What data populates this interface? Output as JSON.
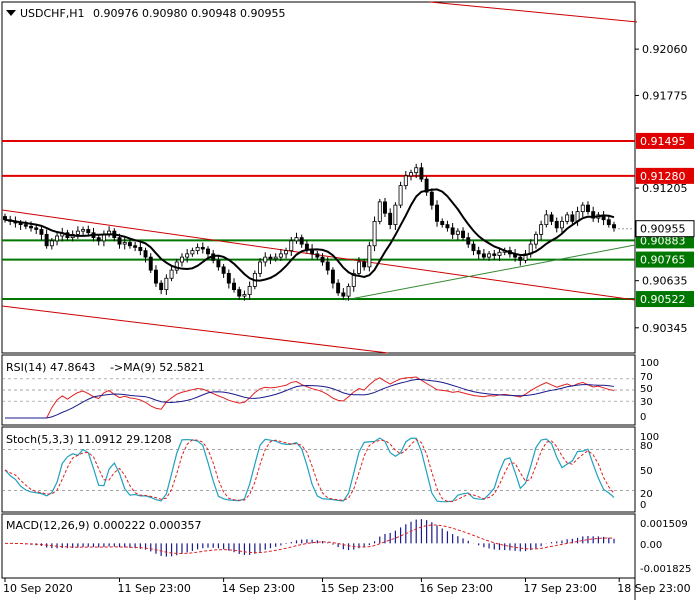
{
  "header": {
    "symbol": "USDCHF,H1",
    "ohlc": "0.90976 0.90980 0.90948 0.90955"
  },
  "colors": {
    "bull": "#ffffff",
    "bear": "#000000",
    "candle_outline": "#000000",
    "ma_line": "#000000",
    "channel": "#cc0000",
    "support_resistance_red": "#e00000",
    "support_green": "#007700",
    "trend_green": "#338833",
    "rsi_line": "#e02020",
    "rsi_ma": "#1a1a8c",
    "stoch_main": "#20a0c0",
    "stoch_signal": "#e02020",
    "macd_hist": "#1a1a8c",
    "macd_signal": "#e02020",
    "grid": "#888888"
  },
  "chart_data": [
    {
      "type": "candlestick",
      "title": "USDCHF,H1",
      "price_scale": {
        "ticks": [
          "0.92060",
          "0.91775",
          "0.91205",
          "0.90635",
          "0.90345"
        ],
        "ylim": [
          0.9019,
          0.9235
        ]
      },
      "horizontal_levels": [
        {
          "value": 0.91495,
          "label": "0.91495",
          "color": "red"
        },
        {
          "value": 0.9128,
          "label": "0.91280",
          "color": "red"
        },
        {
          "value": 0.90883,
          "label": "0.90883",
          "color": "green"
        },
        {
          "value": 0.90765,
          "label": "0.90765",
          "color": "green"
        },
        {
          "value": 0.90522,
          "label": "0.90522",
          "color": "green"
        }
      ],
      "current_price": {
        "value": 0.90955,
        "label": "0.90955"
      },
      "closes": [
        0.9101,
        0.91,
        0.9099,
        0.9098,
        0.9097,
        0.9096,
        0.9095,
        0.9092,
        0.9085,
        0.9088,
        0.9091,
        0.9093,
        0.909,
        0.9092,
        0.9094,
        0.9095,
        0.9093,
        0.909,
        0.9088,
        0.9092,
        0.9094,
        0.909,
        0.9086,
        0.9087,
        0.9085,
        0.9084,
        0.9082,
        0.9078,
        0.907,
        0.9062,
        0.9058,
        0.9065,
        0.907,
        0.9075,
        0.9078,
        0.908,
        0.9082,
        0.9084,
        0.9083,
        0.908,
        0.9076,
        0.9072,
        0.9068,
        0.9062,
        0.9058,
        0.9054,
        0.9055,
        0.906,
        0.9068,
        0.9075,
        0.9078,
        0.9077,
        0.9078,
        0.908,
        0.9082,
        0.9088,
        0.909,
        0.9086,
        0.9083,
        0.908,
        0.9078,
        0.9075,
        0.907,
        0.9062,
        0.9056,
        0.9054,
        0.906,
        0.9068,
        0.9075,
        0.9072,
        0.9085,
        0.91,
        0.9112,
        0.9105,
        0.9098,
        0.911,
        0.9122,
        0.9128,
        0.913,
        0.9133,
        0.9126,
        0.9118,
        0.911,
        0.91,
        0.9098,
        0.9096,
        0.9092,
        0.9094,
        0.909,
        0.9086,
        0.9082,
        0.908,
        0.9078,
        0.908,
        0.9079,
        0.9081,
        0.9082,
        0.908,
        0.9078,
        0.9076,
        0.908,
        0.9086,
        0.9092,
        0.9098,
        0.9104,
        0.91,
        0.9096,
        0.91,
        0.9104,
        0.91,
        0.9106,
        0.911,
        0.9106,
        0.9102,
        0.9104,
        0.9101,
        0.9098,
        0.9096
      ],
      "moving_average_period": 9
    },
    {
      "type": "line",
      "title": "RSI(14) 47.8643",
      "ma_label": "->MA(9) 52.5821",
      "ticks": [
        "100",
        "70",
        "50",
        "30",
        "0"
      ],
      "levels": [
        70,
        50,
        30
      ],
      "ylim": [
        0,
        100
      ]
    },
    {
      "type": "line",
      "title": "Stoch(5,3,3) 11.0912 29.1208",
      "ticks": [
        "100",
        "80",
        "50",
        "20",
        "0"
      ],
      "levels": [
        80,
        20
      ],
      "ylim": [
        0,
        100
      ]
    },
    {
      "type": "bar",
      "title": "MACD(12,26,9) 0.000222 0.000357",
      "ticks": [
        "0.001509",
        "0.00",
        "-0.001825"
      ],
      "ylim": [
        -0.001825,
        0.001509
      ]
    }
  ],
  "time_axis": {
    "labels": [
      "10 Sep 2020",
      "11 Sep 23:00",
      "14 Sep 23:00",
      "15 Sep 23:00",
      "16 Sep 23:00",
      "17 Sep 23:00",
      "18 Sep 23:00"
    ],
    "label_bar_index": [
      0,
      22,
      42,
      61,
      80,
      100,
      118
    ]
  }
}
